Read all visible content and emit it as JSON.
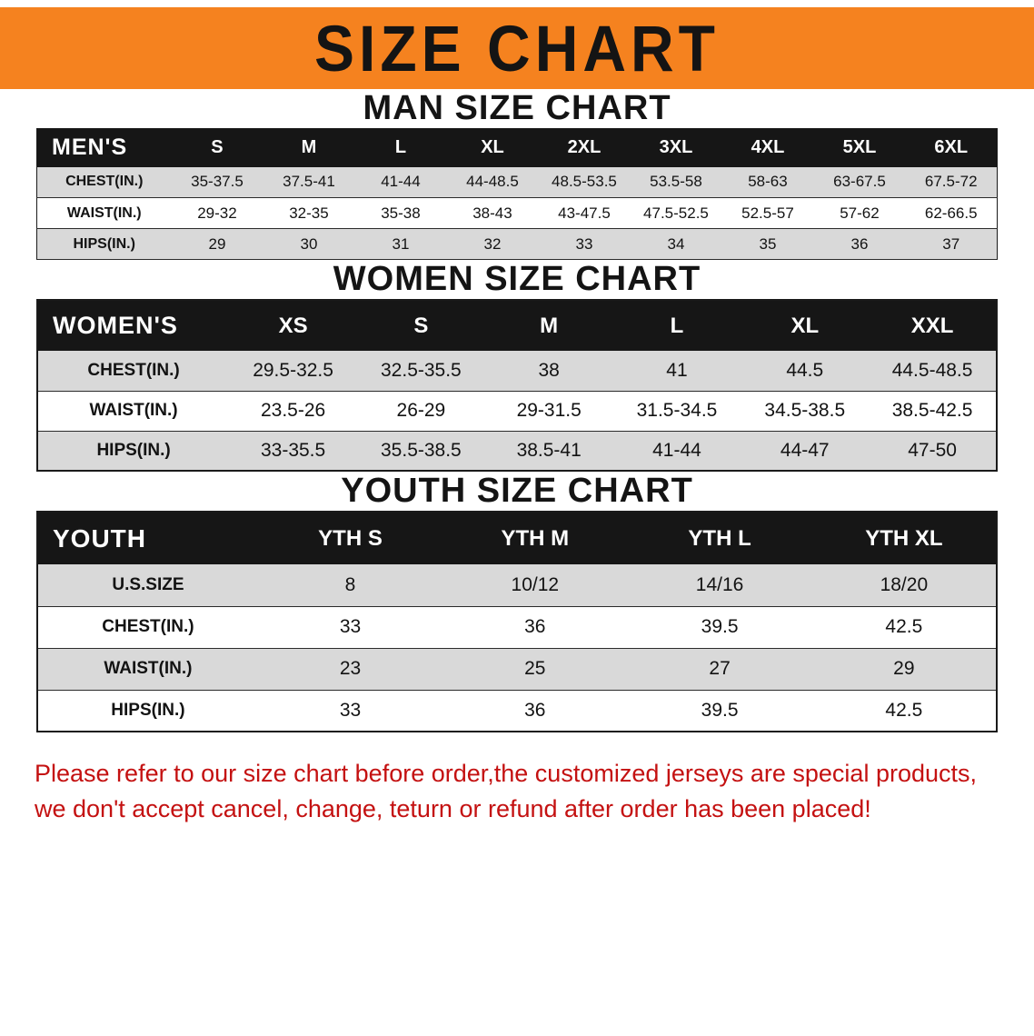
{
  "banner": {
    "title": "SIZE CHART"
  },
  "colors": {
    "banner_orange": "#F5821F",
    "header_black": "#161616",
    "row_gray": "#D9D9D9",
    "disclaimer_red": "#C41111"
  },
  "sections": [
    {
      "id": "men",
      "heading": "MAN SIZE CHART",
      "corner_label": "MEN'S",
      "columns": [
        "S",
        "M",
        "L",
        "XL",
        "2XL",
        "3XL",
        "4XL",
        "5XL",
        "6XL"
      ],
      "rows": [
        {
          "label": "CHEST(IN.)",
          "values": [
            "35-37.5",
            "37.5-41",
            "41-44",
            "44-48.5",
            "48.5-53.5",
            "53.5-58",
            "58-63",
            "63-67.5",
            "67.5-72"
          ]
        },
        {
          "label": "WAIST(IN.)",
          "values": [
            "29-32",
            "32-35",
            "35-38",
            "38-43",
            "43-47.5",
            "47.5-52.5",
            "52.5-57",
            "57-62",
            "62-66.5"
          ]
        },
        {
          "label": "HIPS(IN.)",
          "values": [
            "29",
            "30",
            "31",
            "32",
            "33",
            "34",
            "35",
            "36",
            "37"
          ]
        }
      ]
    },
    {
      "id": "women",
      "heading": "WOMEN SIZE CHART",
      "corner_label": "WOMEN'S",
      "columns": [
        "XS",
        "S",
        "M",
        "L",
        "XL",
        "XXL"
      ],
      "rows": [
        {
          "label": "CHEST(IN.)",
          "values": [
            "29.5-32.5",
            "32.5-35.5",
            "38",
            "41",
            "44.5",
            "44.5-48.5"
          ]
        },
        {
          "label": "WAIST(IN.)",
          "values": [
            "23.5-26",
            "26-29",
            "29-31.5",
            "31.5-34.5",
            "34.5-38.5",
            "38.5-42.5"
          ]
        },
        {
          "label": "HIPS(IN.)",
          "values": [
            "33-35.5",
            "35.5-38.5",
            "38.5-41",
            "41-44",
            "44-47",
            "47-50"
          ]
        }
      ]
    },
    {
      "id": "youth",
      "heading": "YOUTH SIZE CHART",
      "corner_label": "YOUTH",
      "columns": [
        "YTH S",
        "YTH M",
        "YTH L",
        "YTH XL"
      ],
      "rows": [
        {
          "label": "U.S.SIZE",
          "values": [
            "8",
            "10/12",
            "14/16",
            "18/20"
          ]
        },
        {
          "label": "CHEST(IN.)",
          "values": [
            "33",
            "36",
            "39.5",
            "42.5"
          ]
        },
        {
          "label": "WAIST(IN.)",
          "values": [
            "23",
            "25",
            "27",
            "29"
          ]
        },
        {
          "label": "HIPS(IN.)",
          "values": [
            "33",
            "36",
            "39.5",
            "42.5"
          ]
        }
      ]
    }
  ],
  "footer": {
    "line1": "Please refer to our size chart before order,the customized jerseys are special products,",
    "line2": "we don't accept cancel, change, teturn or refund after order has been placed!"
  }
}
